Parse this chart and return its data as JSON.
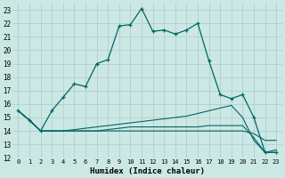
{
  "xlabel": "Humidex (Indice chaleur)",
  "bg_color": "#cce8e4",
  "grid_color": "#aaccca",
  "line_color": "#006666",
  "xlim": [
    -0.5,
    23.5
  ],
  "ylim": [
    12,
    23.5
  ],
  "x": [
    0,
    1,
    2,
    3,
    4,
    5,
    6,
    7,
    8,
    9,
    10,
    11,
    12,
    13,
    14,
    15,
    16,
    17,
    18,
    19,
    20,
    21,
    22,
    23
  ],
  "series1": [
    15.5,
    14.8,
    14.0,
    15.5,
    16.5,
    17.5,
    17.3,
    19.0,
    19.3,
    21.8,
    21.9,
    23.1,
    21.4,
    21.5,
    21.2,
    21.5,
    22.0,
    19.2,
    16.7,
    16.4,
    16.7,
    15.0,
    12.4,
    12.4
  ],
  "series2": [
    15.5,
    14.8,
    14.0,
    14.0,
    14.0,
    14.1,
    14.2,
    14.3,
    14.4,
    14.5,
    14.6,
    14.7,
    14.8,
    14.9,
    15.0,
    15.1,
    15.3,
    15.5,
    15.7,
    15.9,
    15.0,
    13.3,
    12.4,
    12.6
  ],
  "series3": [
    15.5,
    14.8,
    14.0,
    14.0,
    14.0,
    14.0,
    14.0,
    14.0,
    14.1,
    14.2,
    14.3,
    14.3,
    14.3,
    14.3,
    14.3,
    14.3,
    14.3,
    14.4,
    14.4,
    14.4,
    14.4,
    13.5,
    12.4,
    12.4
  ],
  "series4": [
    15.5,
    14.8,
    14.0,
    14.0,
    14.0,
    14.0,
    14.0,
    14.0,
    14.0,
    14.0,
    14.0,
    14.0,
    14.0,
    14.0,
    14.0,
    14.0,
    14.0,
    14.0,
    14.0,
    14.0,
    14.0,
    13.8,
    13.3,
    13.3
  ]
}
